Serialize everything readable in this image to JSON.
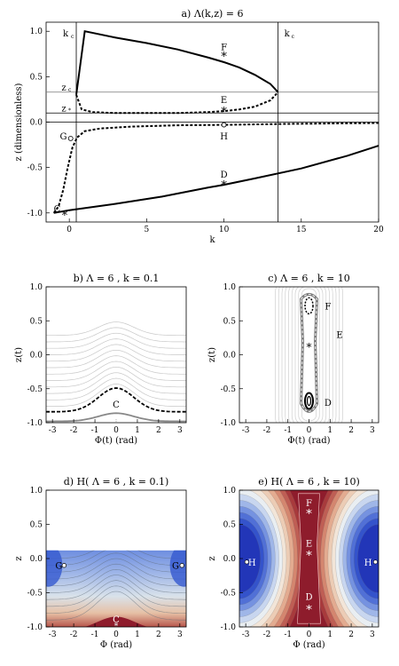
{
  "chart_data": [
    {
      "panel": "a",
      "type": "line",
      "title": "a) Λ(k,z) = 6",
      "xlabel": "k",
      "ylabel": "z (dimensionless)",
      "xlim": [
        -1.5,
        20
      ],
      "ylim": [
        -1.1,
        1.1
      ],
      "xticks": [
        0,
        5,
        10,
        15,
        20
      ],
      "yticks": [
        -1.0,
        -0.5,
        0.0,
        0.5,
        1.0
      ],
      "ref_lines": {
        "kc_left": 0.45,
        "kc_right": 13.5,
        "zc": 0.33,
        "zstar": 0.1,
        "zero": 0.0,
        "labels": {
          "kc_left": "k",
          "kc_right": "k",
          "zc": "z",
          "zstar": "z"
        }
      },
      "series": [
        {
          "style": "solid-upper",
          "x": [
            0.45,
            1.0,
            3.0,
            5.0,
            7.0,
            9.0,
            10.0,
            11.0,
            12.0,
            13.0,
            13.5
          ],
          "y": [
            0.3,
            1.0,
            0.93,
            0.87,
            0.8,
            0.71,
            0.66,
            0.6,
            0.52,
            0.42,
            0.33
          ]
        },
        {
          "style": "dashed-upper",
          "x": [
            0.45,
            0.8,
            1.5,
            3.0,
            5.0,
            7.0,
            9.0,
            10.0,
            11.0,
            12.0,
            13.0,
            13.5
          ],
          "y": [
            0.3,
            0.14,
            0.11,
            0.1,
            0.1,
            0.1,
            0.11,
            0.12,
            0.14,
            0.17,
            0.24,
            0.33
          ]
        },
        {
          "style": "dashed-lower",
          "x": [
            -1.0,
            -0.7,
            -0.4,
            -0.1,
            0.2,
            0.5,
            1.0,
            2.0,
            4.0,
            7.0,
            10.0,
            14.0,
            20.0
          ],
          "y": [
            -1.0,
            -0.93,
            -0.75,
            -0.5,
            -0.28,
            -0.17,
            -0.1,
            -0.07,
            -0.05,
            -0.035,
            -0.03,
            -0.02,
            -0.01
          ]
        },
        {
          "style": "solid-lower",
          "x": [
            -1.0,
            0.0,
            3.0,
            6.0,
            9.0,
            10.0,
            12.0,
            15.0,
            18.0,
            20.0
          ],
          "y": [
            -1.0,
            -0.97,
            -0.9,
            -0.82,
            -0.72,
            -0.69,
            -0.62,
            -0.51,
            -0.37,
            -0.26
          ]
        }
      ],
      "annotations": [
        {
          "text": "F",
          "x": 10,
          "y": 0.83,
          "marker_y": 0.73
        },
        {
          "text": "E",
          "x": 10,
          "y": 0.25,
          "marker_y": 0.12
        },
        {
          "text": "G",
          "x": -0.5,
          "y": -0.15,
          "marker_y": -0.18
        },
        {
          "text": "H",
          "x": 10,
          "y": -0.15,
          "marker_y": -0.03
        },
        {
          "text": "D",
          "x": 10,
          "y": -0.57,
          "marker_y": -0.69
        },
        {
          "text": "C",
          "x": -0.9,
          "y": -0.95,
          "marker_y": -1.02
        }
      ]
    },
    {
      "panel": "b",
      "type": "contour",
      "title": "b) Λ = 6 , k = 0.1",
      "xlabel": "Φ(t) (rad)",
      "ylabel": "z(t)",
      "xlim": [
        -3.3,
        3.3
      ],
      "ylim": [
        -1.0,
        1.0
      ],
      "xticks": [
        -3,
        -2,
        -1,
        0,
        1,
        2,
        3
      ],
      "yticks": [
        -1.0,
        -0.5,
        0.0,
        0.5,
        1.0
      ],
      "dashed_curve": {
        "base": -0.84,
        "peak": -0.49
      },
      "grey_curve": {
        "base": -0.98,
        "peak": -0.86
      },
      "labels": [
        {
          "text": "C",
          "x": 0,
          "y": -0.78
        }
      ]
    },
    {
      "panel": "c",
      "type": "contour",
      "title": "c) Λ = 6 , k = 10",
      "xlabel": "Φ(t) (rad)",
      "ylabel": "z(t)",
      "xlim": [
        -3.3,
        3.3
      ],
      "ylim": [
        -1.0,
        1.0
      ],
      "xticks": [
        -3,
        -2,
        -1,
        0,
        1,
        2,
        3
      ],
      "yticks": [
        -1.0,
        -0.5,
        0.0,
        0.5,
        1.0
      ],
      "labels": [
        {
          "text": "F",
          "x": 0.9,
          "y": 0.72
        },
        {
          "text": "E",
          "x": 1.45,
          "y": 0.3
        },
        {
          "text": "D",
          "x": 0.9,
          "y": -0.7
        }
      ],
      "star": {
        "x": 0,
        "y": 0.12
      }
    },
    {
      "panel": "d",
      "type": "heatmap",
      "title": "d) H( Λ = 6 , k = 0.1)",
      "xlabel": "Φ (rad)",
      "ylabel": "z",
      "xlim": [
        -3.3,
        3.3
      ],
      "ylim": [
        -1.0,
        1.0
      ],
      "xticks": [
        -3,
        -2,
        -1,
        0,
        1,
        2,
        3
      ],
      "yticks": [
        -1.0,
        -0.5,
        0.0,
        0.5,
        1.0
      ],
      "zmax_filled": 0.12,
      "labels": [
        {
          "text": "G",
          "x": -2.7,
          "y": -0.1
        },
        {
          "text": "G",
          "x": 2.8,
          "y": -0.1
        },
        {
          "text": "C",
          "x": 0,
          "y": -0.88
        }
      ]
    },
    {
      "panel": "e",
      "type": "heatmap",
      "title": "e) H( Λ = 6 , k = 10)",
      "xlabel": "Φ (rad)",
      "ylabel": "z",
      "xlim": [
        -3.3,
        3.3
      ],
      "ylim": [
        -1.0,
        1.0
      ],
      "xticks": [
        -3,
        -2,
        -1,
        0,
        1,
        2,
        3
      ],
      "yticks": [
        -1.0,
        -0.5,
        0.0,
        0.5,
        1.0
      ],
      "labels": [
        {
          "text": "F",
          "x": 0,
          "y": 0.82
        },
        {
          "text": "E",
          "x": 0,
          "y": 0.23
        },
        {
          "text": "D",
          "x": 0,
          "y": -0.55
        },
        {
          "text": "H",
          "x": -2.7,
          "y": -0.05
        },
        {
          "text": "H",
          "x": 2.8,
          "y": -0.05
        }
      ],
      "stars_y": [
        0.66,
        0.05,
        -0.74
      ]
    }
  ],
  "colors": {
    "hot": "#8e1c2c",
    "mid": "#f2efe6",
    "cold": "#2b49c8"
  }
}
